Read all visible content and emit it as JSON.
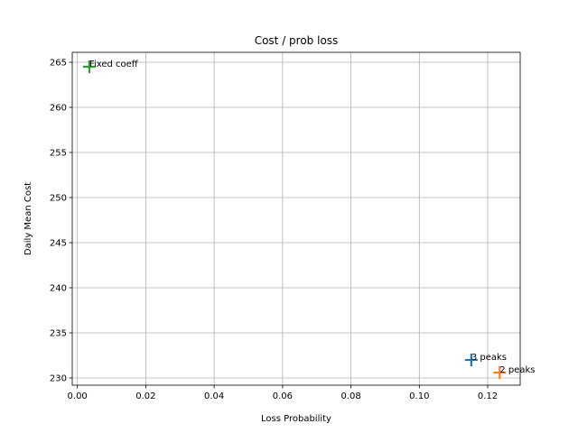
{
  "chart_data": {
    "type": "scatter",
    "title": "Cost / prob loss",
    "xlabel": "Loss Probability",
    "ylabel": "Daily Mean Cost",
    "xlim": [
      -0.0015,
      0.1295
    ],
    "ylim": [
      229.2,
      266.1
    ],
    "xticks": [
      0.0,
      0.02,
      0.04,
      0.06,
      0.08,
      0.1,
      0.12
    ],
    "xtick_labels": [
      "0.00",
      "0.02",
      "0.04",
      "0.06",
      "0.08",
      "0.10",
      "0.12"
    ],
    "yticks": [
      230,
      235,
      240,
      245,
      250,
      255,
      260,
      265
    ],
    "ytick_labels": [
      "230",
      "235",
      "240",
      "245",
      "250",
      "255",
      "260",
      "265"
    ],
    "grid": true,
    "marker": "+",
    "points": [
      {
        "label": "3 peaks",
        "x": 0.1152,
        "y": 232.0,
        "color": "#1f77b4"
      },
      {
        "label": "2 peaks",
        "x": 0.1235,
        "y": 230.6,
        "color": "#ff7f0e"
      },
      {
        "label": "Fixed coeff",
        "x": 0.0035,
        "y": 264.5,
        "color": "#2ca02c"
      }
    ]
  }
}
